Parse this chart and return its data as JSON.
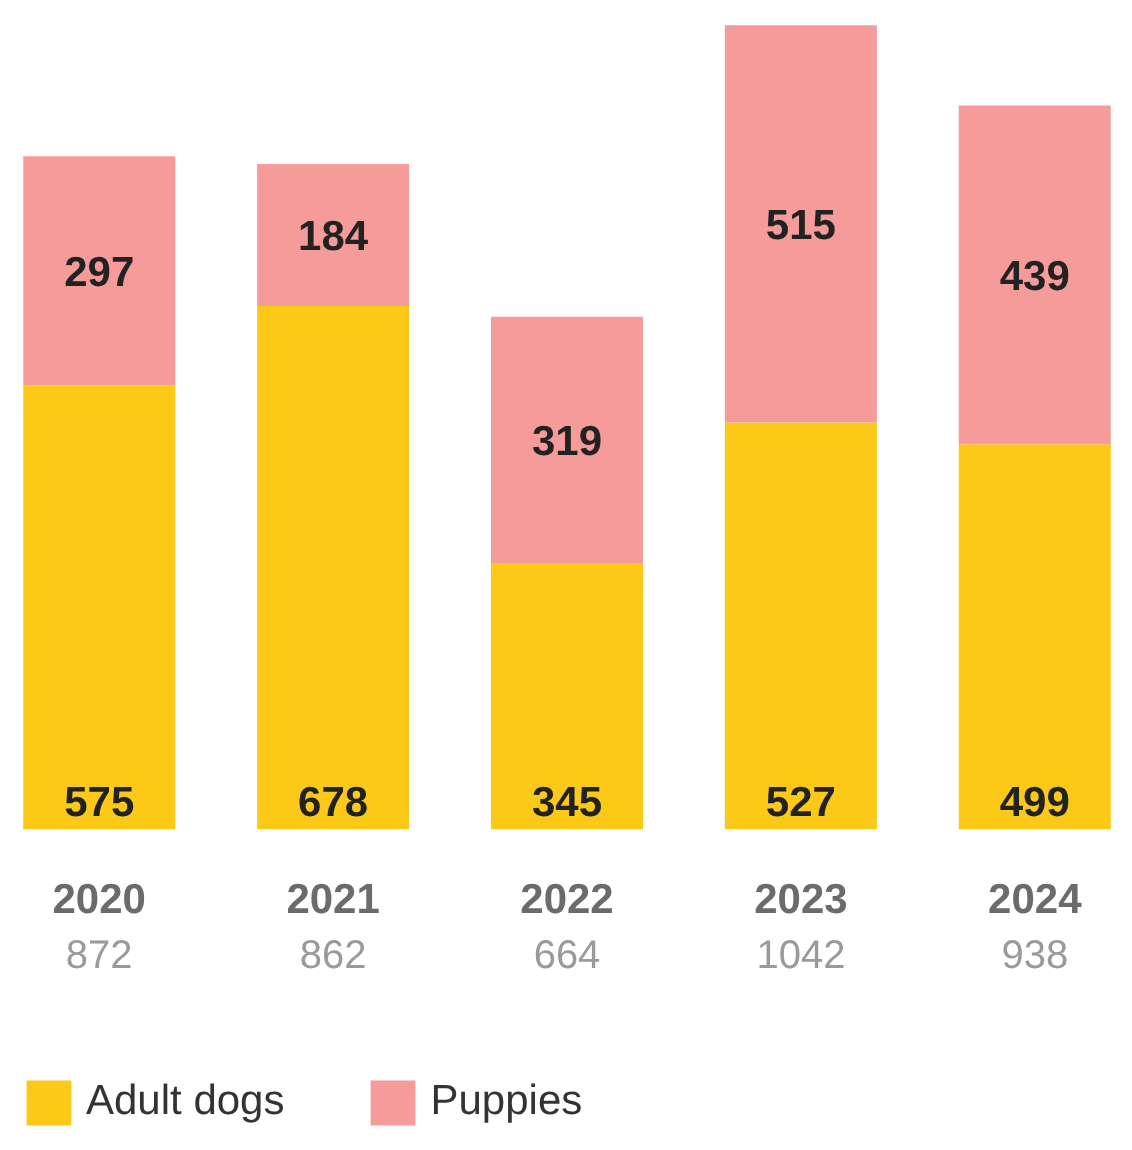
{
  "chart_data": {
    "type": "bar",
    "stacked": true,
    "categories": [
      "2020",
      "2021",
      "2022",
      "2023",
      "2024"
    ],
    "series": [
      {
        "name": "Adult dogs",
        "color": "#fdc918",
        "values": [
          575,
          678,
          345,
          527,
          499
        ]
      },
      {
        "name": "Puppies",
        "color": "#f59c9a",
        "values": [
          297,
          184,
          319,
          515,
          439
        ]
      }
    ],
    "totals": [
      "872",
      "862",
      "664",
      "1042",
      "938"
    ],
    "data_labels": true,
    "legend": "bottom",
    "grid": false
  }
}
